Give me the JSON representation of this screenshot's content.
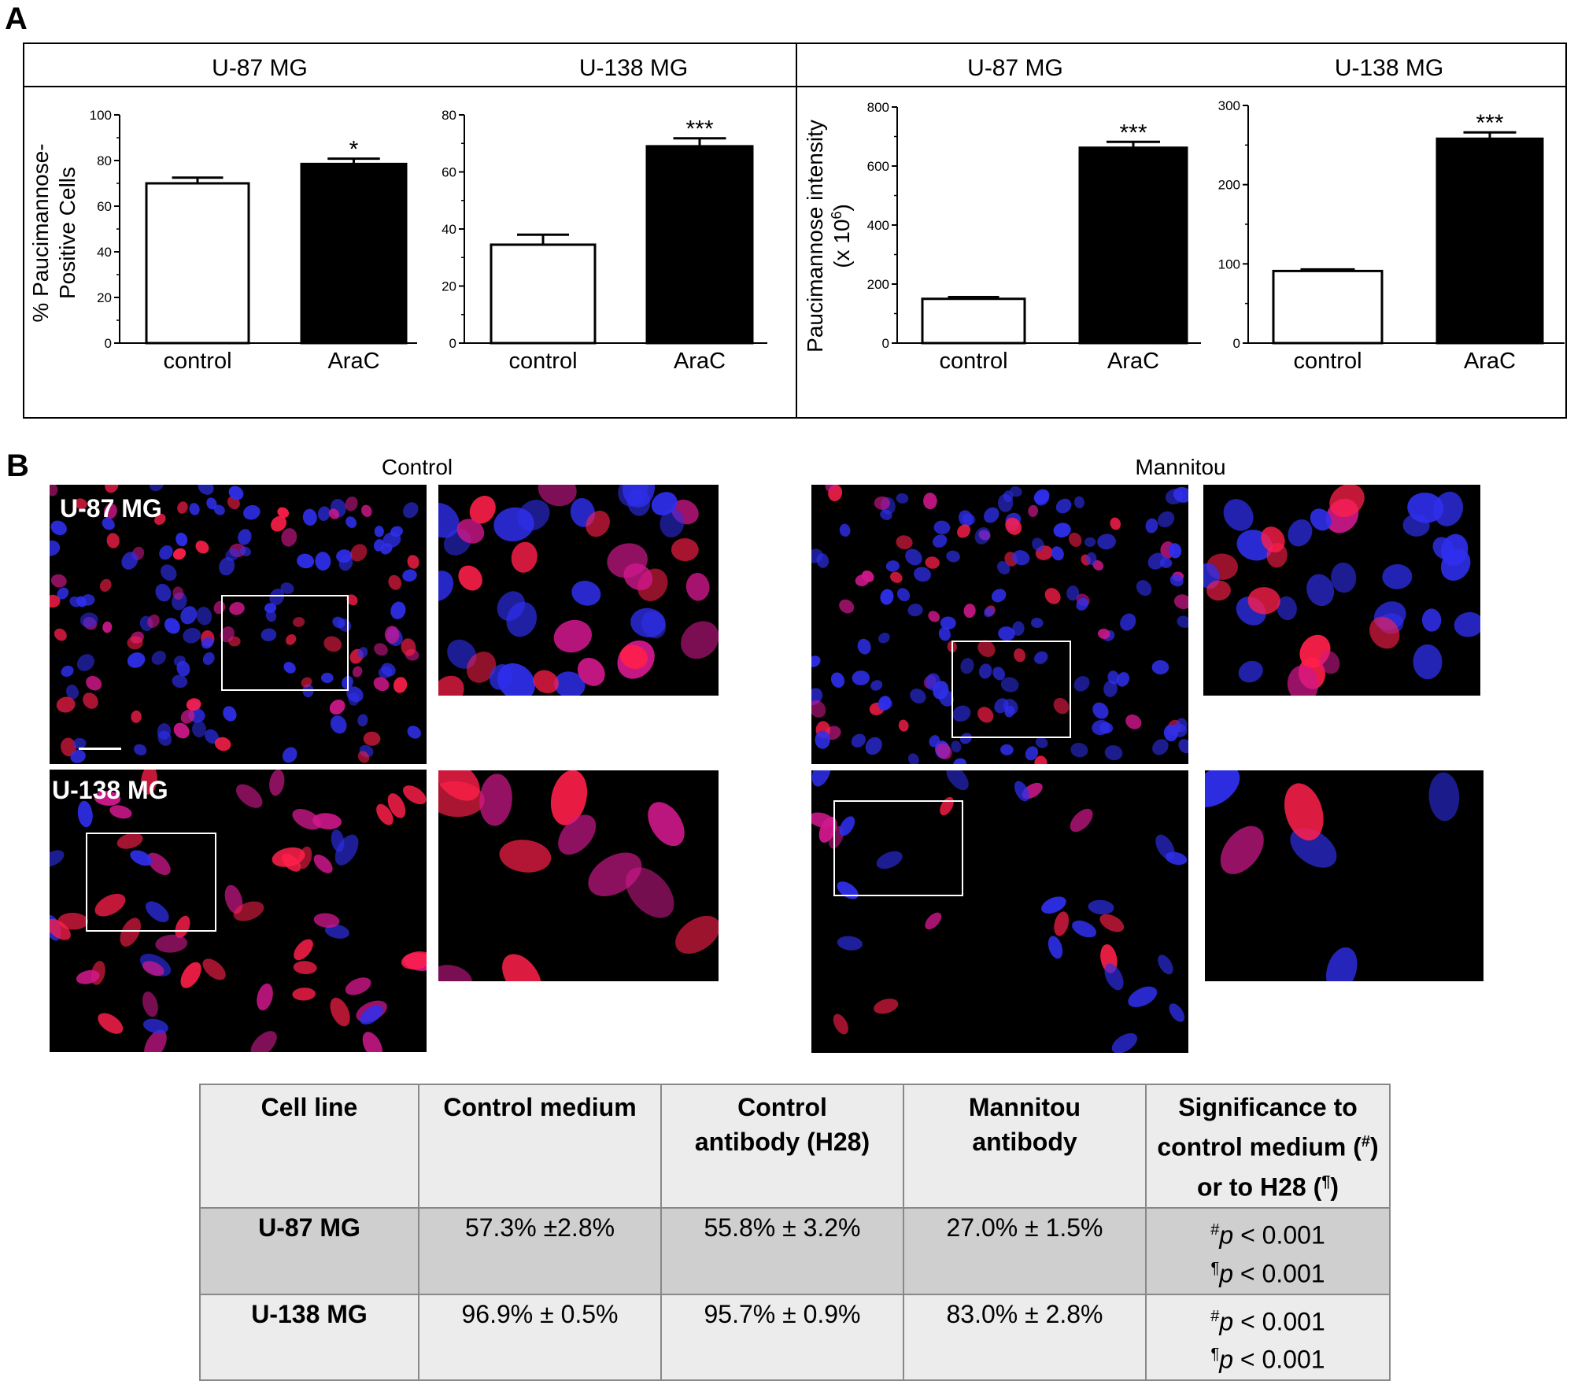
{
  "panelA": {
    "letter": "A",
    "group_headers": [
      "U-87 MG",
      "U-138 MG",
      "U-87 MG",
      "U-138 MG"
    ]
  },
  "chart_data": [
    {
      "type": "bar",
      "title": "U-87 MG",
      "categories": [
        "control",
        "AraC"
      ],
      "values": [
        70,
        78.5
      ],
      "errors": [
        2.5,
        2.3
      ],
      "fills": [
        "#ffffff",
        "#000000"
      ],
      "annotations": [
        "",
        "*"
      ],
      "ylabel": "% Paucimannose-\nPositive Cells",
      "ylabel_lines": [
        "% Paucimannose-",
        "Positive Cells"
      ],
      "ylim": [
        0,
        100
      ],
      "yticks": [
        0,
        20,
        40,
        60,
        80,
        100
      ]
    },
    {
      "type": "bar",
      "title": "U-138 MG",
      "categories": [
        "control",
        "AraC"
      ],
      "values": [
        34.5,
        69
      ],
      "errors": [
        3.5,
        2.8
      ],
      "fills": [
        "#ffffff",
        "#000000"
      ],
      "annotations": [
        "",
        "***"
      ],
      "ylabel": "",
      "ylim": [
        0,
        80
      ],
      "yticks": [
        0,
        20,
        40,
        60,
        80
      ]
    },
    {
      "type": "bar",
      "title": "U-87 MG",
      "categories": [
        "control",
        "AraC"
      ],
      "values": [
        150,
        662
      ],
      "errors": [
        6,
        20
      ],
      "fills": [
        "#ffffff",
        "#000000"
      ],
      "annotations": [
        "",
        "***"
      ],
      "ylabel": "Paucimannose intensity\n(x 10^6)",
      "ylabel_lines": [
        "Paucimannose intensity",
        "(x 10"
      ],
      "ylabel_sup": "6",
      "ylabel_tail": ")",
      "ylim": [
        0,
        800
      ],
      "yticks": [
        0,
        200,
        400,
        600,
        800
      ]
    },
    {
      "type": "bar",
      "title": "U-138 MG",
      "categories": [
        "control",
        "AraC"
      ],
      "values": [
        91,
        258
      ],
      "errors": [
        2,
        8
      ],
      "fills": [
        "#ffffff",
        "#000000"
      ],
      "annotations": [
        "",
        "***"
      ],
      "ylabel": "",
      "ylim": [
        0,
        300
      ],
      "yticks": [
        0,
        100,
        200,
        300
      ]
    }
  ],
  "panelB": {
    "letter": "B",
    "conditions": [
      "Control",
      "Mannitou"
    ],
    "row_labels": [
      "U-87 MG",
      "U-138 MG"
    ],
    "table": {
      "headers": [
        [
          "Cell  line"
        ],
        [
          "Control medium"
        ],
        [
          "Control",
          "antibody (H28)"
        ],
        [
          "Mannitou",
          "antibody"
        ],
        [
          "Significance to",
          "control medium (#)",
          "or to H28 (¶)"
        ]
      ],
      "rows": [
        {
          "cell_line": "U-87 MG",
          "control_medium": "57.3% ±2.8%",
          "control_antibody": "55.8% ± 3.2%",
          "mannitou_antibody": "27.0% ± 1.5%",
          "sig1_mark": "#",
          "sig1": "p < 0.001",
          "sig2_mark": "¶",
          "sig2": "p < 0.001"
        },
        {
          "cell_line": "U-138 MG",
          "control_medium": "96.9% ± 0.5%",
          "control_antibody": "95.7% ± 0.9%",
          "mannitou_antibody": "83.0% ± 2.8%",
          "sig1_mark": "#",
          "sig1": "p < 0.001",
          "sig2_mark": "¶",
          "sig2": "p < 0.001"
        }
      ]
    }
  },
  "colors": {
    "nucleus_blue": "#2a2aff",
    "stain_red": "#ff1a3c",
    "magenta": "#e01aa0"
  }
}
